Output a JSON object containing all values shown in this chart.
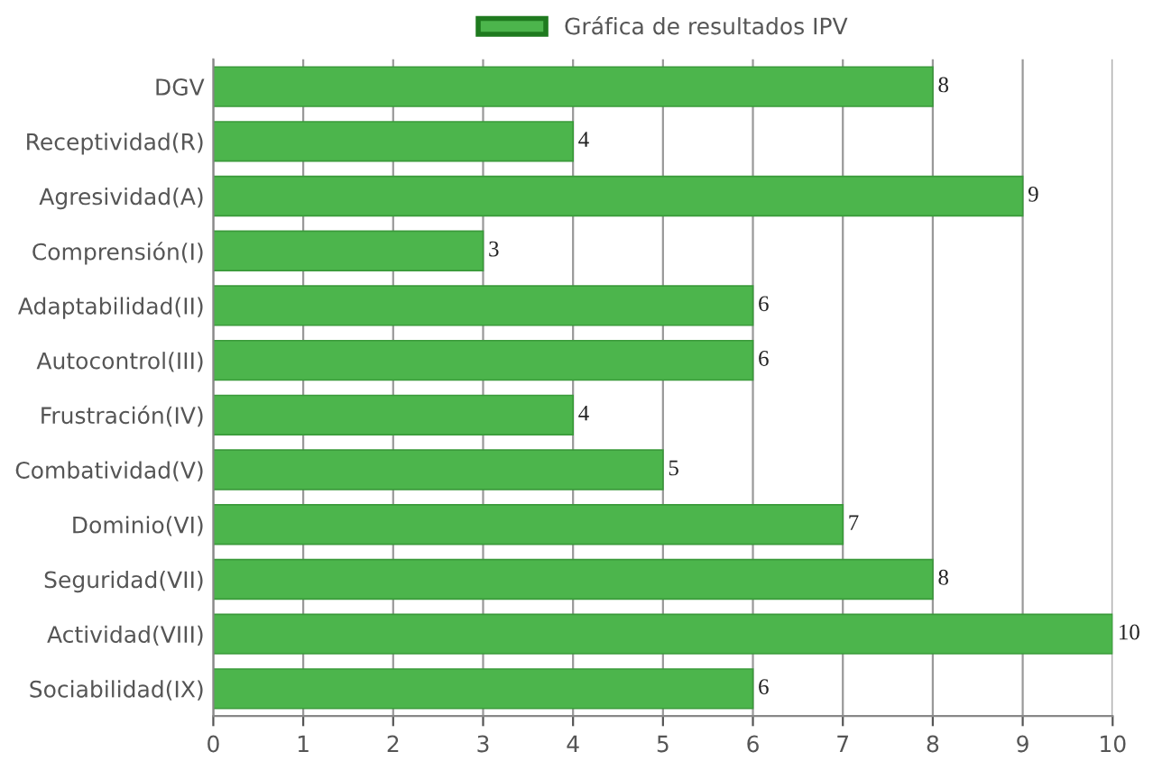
{
  "chart_data": {
    "type": "bar",
    "orientation": "horizontal",
    "categories": [
      "DGV",
      "Receptividad(R)",
      "Agresividad(A)",
      "Comprensión(I)",
      "Adaptabilidad(II)",
      "Autocontrol(III)",
      "Frustración(IV)",
      "Combatividad(V)",
      "Dominio(VI)",
      "Seguridad(VII)",
      "Actividad(VIII)",
      "Sociabilidad(IX)"
    ],
    "series": [
      {
        "name": "Gráfica de resultados IPV",
        "color": "#4cb54c",
        "values": [
          8,
          4,
          9,
          3,
          6,
          6,
          4,
          5,
          7,
          8,
          10,
          6
        ]
      }
    ],
    "xlim": [
      0,
      10
    ],
    "xticks": [
      0,
      1,
      2,
      3,
      4,
      5,
      6,
      7,
      8,
      9,
      10
    ],
    "grid": "x",
    "legend": "top",
    "data_labels": true
  }
}
